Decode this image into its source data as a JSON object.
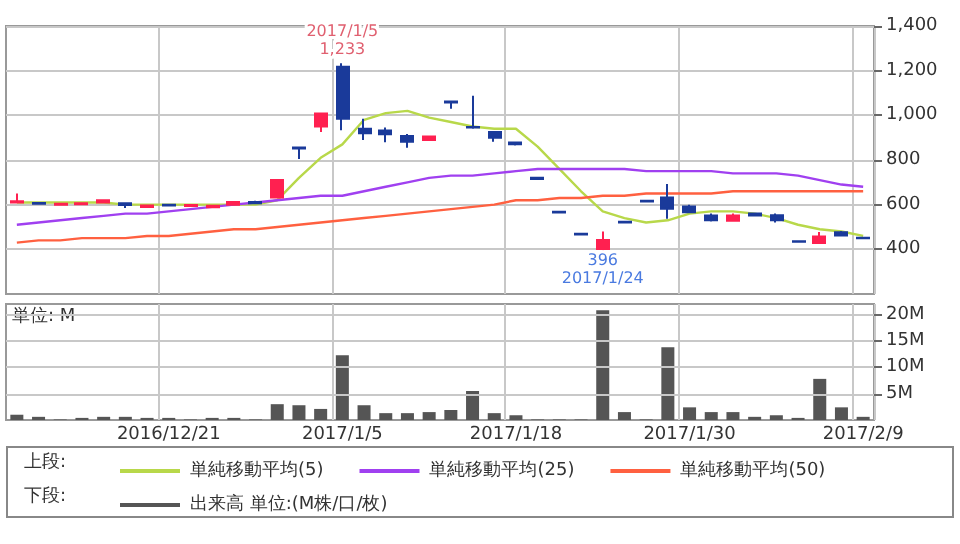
{
  "chart_data": [
    {
      "type": "candlestick",
      "legend_title": "上段:",
      "categories": [
        null,
        null,
        null,
        null,
        null,
        null,
        null,
        "2016/12/21",
        null,
        null,
        null,
        null,
        null,
        null,
        null,
        "2017/1/5",
        null,
        null,
        null,
        null,
        null,
        null,
        null,
        "2017/1/18",
        null,
        null,
        null,
        null,
        null,
        null,
        null,
        "2017/1/30",
        null,
        null,
        null,
        null,
        null,
        null,
        null,
        "2017/2/9"
      ],
      "ohlc": [
        [
          610,
          650,
          605,
          615
        ],
        [
          608,
          612,
          600,
          604
        ],
        [
          600,
          608,
          598,
          604
        ],
        [
          602,
          608,
          598,
          606
        ],
        [
          610,
          622,
          606,
          620
        ],
        [
          606,
          610,
          585,
          598
        ],
        [
          590,
          598,
          585,
          596
        ],
        [
          600,
          604,
          592,
          596
        ],
        [
          594,
          600,
          590,
          598
        ],
        [
          588,
          598,
          585,
          595
        ],
        [
          600,
          615,
          598,
          612
        ],
        [
          612,
          618,
          606,
          606
        ],
        [
          632,
          712,
          628,
          710
        ],
        [
          856,
          858,
          805,
          852
        ],
        [
          950,
          1012,
          925,
          1008
        ],
        [
          1218,
          1233,
          933,
          985
        ],
        [
          940,
          985,
          890,
          920
        ],
        [
          932,
          945,
          880,
          915
        ],
        [
          908,
          916,
          855,
          882
        ],
        [
          890,
          905,
          885,
          905
        ],
        [
          1062,
          1065,
          1030,
          1058
        ],
        [
          948,
          1088,
          940,
          945
        ],
        [
          925,
          930,
          882,
          900
        ],
        [
          878,
          880,
          865,
          870
        ],
        [
          720,
          722,
          715,
          715
        ],
        [
          568,
          570,
          562,
          565
        ],
        [
          470,
          472,
          465,
          466
        ],
        [
          402,
          480,
          396,
          442
        ],
        [
          524,
          526,
          516,
          520
        ],
        [
          618,
          620,
          612,
          614
        ],
        [
          632,
          692,
          537,
          582
        ],
        [
          592,
          600,
          562,
          566
        ],
        [
          552,
          560,
          525,
          530
        ],
        [
          528,
          560,
          525,
          552
        ],
        [
          560,
          562,
          550,
          552
        ],
        [
          553,
          560,
          520,
          530
        ],
        [
          436,
          438,
          432,
          434
        ],
        [
          428,
          478,
          425,
          458
        ],
        [
          476,
          482,
          458,
          462
        ],
        [
          452,
          456,
          446,
          450
        ]
      ],
      "colors": [
        "#ff2050",
        "#1a3a9a",
        "#ff2050",
        "#ff2050",
        "#ff2050",
        "#1a3a9a",
        "#ff2050",
        "#1a3a9a",
        "#ff2050",
        "#ff2050",
        "#ff2050",
        "#1a3a9a",
        "#ff2050",
        "#1a3a9a",
        "#ff2050",
        "#1a3a9a",
        "#1a3a9a",
        "#1a3a9a",
        "#1a3a9a",
        "#ff2050",
        "#1a3a9a",
        "#1a3a9a",
        "#1a3a9a",
        "#1a3a9a",
        "#1a3a9a",
        "#1a3a9a",
        "#1a3a9a",
        "#ff2050",
        "#1a3a9a",
        "#1a3a9a",
        "#1a3a9a",
        "#1a3a9a",
        "#1a3a9a",
        "#ff2050",
        "#1a3a9a",
        "#1a3a9a",
        "#1a3a9a",
        "#ff2050",
        "#1a3a9a",
        "#1a3a9a"
      ],
      "series": [
        {
          "name": "単純移動平均(5)",
          "type": "line",
          "color": "#b8d84a",
          "values": [
            610,
            610,
            610,
            610,
            610,
            600,
            600,
            600,
            600,
            600,
            600,
            600,
            620,
            720,
            810,
            870,
            980,
            1010,
            1020,
            990,
            970,
            950,
            940,
            940,
            860,
            760,
            660,
            570,
            540,
            520,
            530,
            560,
            570,
            570,
            560,
            540,
            510,
            490,
            480,
            460
          ]
        },
        {
          "name": "単純移動平均(25)",
          "type": "line",
          "color": "#a040f0",
          "values": [
            510,
            520,
            530,
            540,
            550,
            560,
            560,
            570,
            580,
            590,
            600,
            610,
            620,
            630,
            640,
            640,
            660,
            680,
            700,
            720,
            730,
            730,
            740,
            750,
            760,
            760,
            760,
            760,
            760,
            750,
            750,
            750,
            750,
            740,
            740,
            740,
            730,
            710,
            690,
            680
          ]
        },
        {
          "name": "単純移動平均(50)",
          "type": "line",
          "color": "#ff6040",
          "values": [
            430,
            440,
            440,
            450,
            450,
            450,
            460,
            460,
            470,
            480,
            490,
            490,
            500,
            510,
            520,
            530,
            540,
            550,
            560,
            570,
            580,
            590,
            600,
            620,
            620,
            630,
            630,
            640,
            640,
            650,
            650,
            650,
            650,
            660,
            660,
            660,
            660,
            660,
            660,
            660
          ]
        }
      ],
      "ylim": [
        200,
        1400
      ],
      "yticks": [
        {
          "value": 400,
          "label": "400"
        },
        {
          "value": 600,
          "label": "600"
        },
        {
          "value": 800,
          "label": "800"
        },
        {
          "value": 1000,
          "label": "1,000"
        },
        {
          "value": 1200,
          "label": "1,200"
        },
        {
          "value": 1400,
          "label": "1,400"
        }
      ],
      "tick_labels": "y",
      "grid": true,
      "legend": "bottom",
      "marker": "none",
      "annotations": [
        {
          "text": "2017/1/5",
          "x": "2017/1/5",
          "y": 1233
        },
        {
          "text": "1,233",
          "x": "2017/1/5",
          "y": 1233
        },
        {
          "text": "396",
          "y": 396
        },
        {
          "text": "2017/1/24",
          "y": 396
        }
      ]
    },
    {
      "type": "bar",
      "legend_title": "下段:",
      "categories": [
        null,
        null,
        null,
        null,
        null,
        null,
        null,
        "2016/12/21",
        null,
        null,
        null,
        null,
        null,
        null,
        null,
        "2017/1/5",
        null,
        null,
        null,
        null,
        null,
        null,
        null,
        "2017/1/18",
        null,
        null,
        null,
        null,
        null,
        null,
        null,
        "2017/1/30",
        null,
        null,
        null,
        null,
        null,
        null,
        null,
        "2017/2/9"
      ],
      "series": [
        {
          "name": "出来高 単位:(M株/口/枚)",
          "color": "#555555",
          "values": [
            1.0,
            0.6,
            0.1,
            0.4,
            0.6,
            0.6,
            0.4,
            0.4,
            0.1,
            0.4,
            0.4,
            0.1,
            3.0,
            2.8,
            2.1,
            12.3,
            2.8,
            1.3,
            1.3,
            1.5,
            1.9,
            5.5,
            1.3,
            0.9,
            0.1,
            0.1,
            0.1,
            20.8,
            1.5,
            0.1,
            13.8,
            2.4,
            1.5,
            1.5,
            0.6,
            0.9,
            0.4,
            7.8,
            2.4,
            0.6
          ]
        }
      ],
      "ylim": [
        0,
        22
      ],
      "yticks": [
        {
          "value": 5,
          "label": "5M"
        },
        {
          "value": 10,
          "label": "10M"
        },
        {
          "value": 15,
          "label": "15M"
        },
        {
          "value": 20,
          "label": "20M"
        }
      ],
      "grid": true,
      "legend": "bottom",
      "annotations": [
        "単位: M"
      ]
    }
  ]
}
